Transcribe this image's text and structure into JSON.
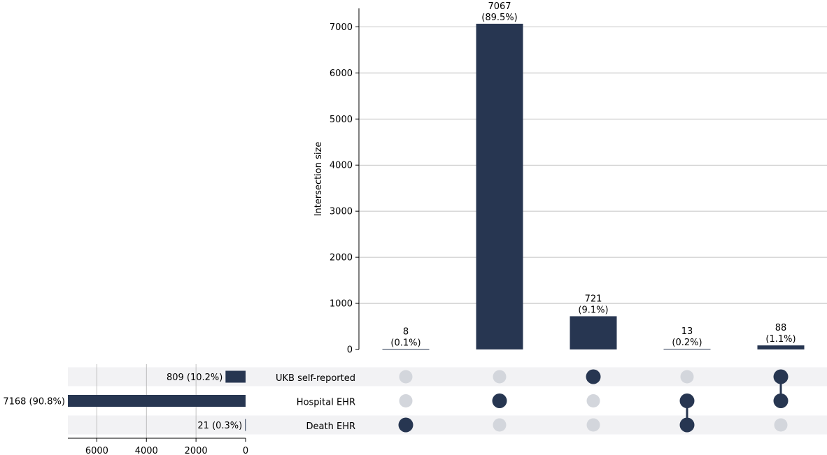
{
  "chart_data": {
    "type": "upset",
    "colors": {
      "bar": "#273651",
      "dot_active": "#273651",
      "dot_inactive": "#d3d6dc",
      "stripe": "#f2f2f4",
      "grid": "#b0b0b0"
    },
    "intersections": {
      "ylabel": "Intersection size",
      "ylim": [
        0,
        7400
      ],
      "yticks": [
        0,
        1000,
        2000,
        3000,
        4000,
        5000,
        6000,
        7000
      ],
      "bars": [
        {
          "value": 8,
          "label": "8",
          "pct": "(0.1%)",
          "members": [
            0,
            0,
            1
          ]
        },
        {
          "value": 7067,
          "label": "7067",
          "pct": "(89.5%)",
          "members": [
            0,
            1,
            0
          ]
        },
        {
          "value": 721,
          "label": "721",
          "pct": "(9.1%)",
          "members": [
            1,
            0,
            0
          ]
        },
        {
          "value": 13,
          "label": "13",
          "pct": "(0.2%)",
          "members": [
            0,
            1,
            1
          ]
        },
        {
          "value": 88,
          "label": "88",
          "pct": "(1.1%)",
          "members": [
            1,
            1,
            0
          ]
        }
      ]
    },
    "sets": {
      "names": [
        "UKB self-reported",
        "Hospital EHR",
        "Death EHR"
      ],
      "sizes": [
        809,
        7168,
        21
      ],
      "size_labels": [
        "809 (10.2%)",
        "7168 (90.8%)",
        "21 (0.3%)"
      ],
      "xlim": [
        0,
        7168
      ],
      "xticks": [
        6000,
        4000,
        2000,
        0
      ]
    }
  }
}
